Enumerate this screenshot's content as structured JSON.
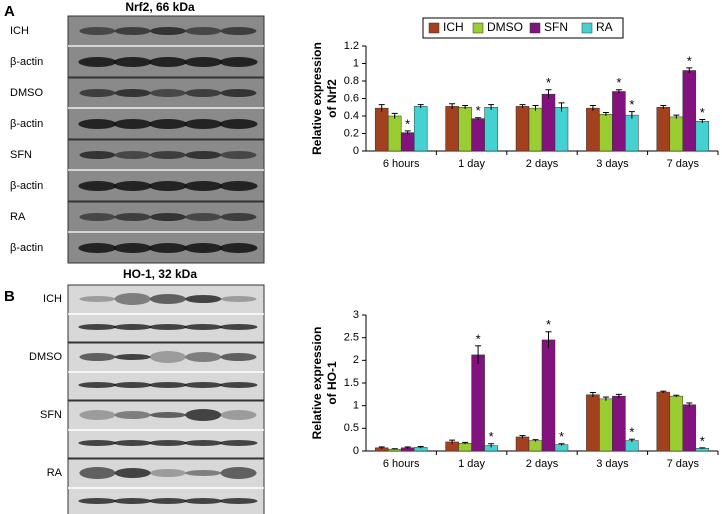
{
  "panels": [
    {
      "letter": "A",
      "title": "Nrf2, 66 kDa",
      "groups": [
        {
          "label": "ICH",
          "control": "β-actin"
        },
        {
          "label": "DMSO",
          "control": "β-actin"
        },
        {
          "label": "SFN",
          "control": "β-actin"
        },
        {
          "label": "RA",
          "control": "β-actin"
        }
      ]
    },
    {
      "letter": "B",
      "title": "HO-1, 32 kDa",
      "groups": [
        {
          "label": "ICH"
        },
        {
          "label": "DMSO"
        },
        {
          "label": "SFN"
        },
        {
          "label": "RA"
        }
      ]
    }
  ],
  "chart_data": [
    {
      "type": "bar",
      "ylabel": [
        "Relative expression",
        "of Nrf2"
      ],
      "categories": [
        "6 hours",
        "1 day",
        "2 days",
        "3 days",
        "7 days"
      ],
      "series": [
        {
          "name": "ICH",
          "color": "#a3401e",
          "values": [
            0.49,
            0.51,
            0.51,
            0.49,
            0.5
          ],
          "errors": [
            0.04,
            0.03,
            0.02,
            0.03,
            0.02
          ]
        },
        {
          "name": "DMSO",
          "color": "#9acd32",
          "values": [
            0.4,
            0.5,
            0.49,
            0.42,
            0.39
          ],
          "errors": [
            0.03,
            0.02,
            0.03,
            0.02,
            0.02
          ]
        },
        {
          "name": "SFN",
          "color": "#82127e",
          "values": [
            0.21,
            0.37,
            0.65,
            0.68,
            0.92
          ],
          "errors": [
            0.02,
            0.01,
            0.05,
            0.02,
            0.03
          ]
        },
        {
          "name": "RA",
          "color": "#44d1d1",
          "values": [
            0.51,
            0.5,
            0.5,
            0.41,
            0.34
          ],
          "errors": [
            0.02,
            0.03,
            0.05,
            0.04,
            0.02
          ]
        }
      ],
      "annotations": [
        {
          "text": "*",
          "category": "6 hours",
          "series": "SFN"
        },
        {
          "text": "*",
          "category": "1 day",
          "series": "SFN"
        },
        {
          "text": "*",
          "category": "2 days",
          "series": "SFN"
        },
        {
          "text": "*",
          "category": "3 days",
          "series": "SFN"
        },
        {
          "text": "*",
          "category": "3 days",
          "series": "RA"
        },
        {
          "text": "*",
          "category": "7 days",
          "series": "SFN"
        },
        {
          "text": "*",
          "category": "7 days",
          "series": "RA"
        }
      ],
      "ylim": [
        0,
        1.2
      ],
      "yticks": [
        0,
        0.2,
        0.4,
        0.6,
        0.8,
        1,
        1.2
      ],
      "legend": "top"
    },
    {
      "type": "bar",
      "ylabel": [
        "Relative expression",
        "of HO-1"
      ],
      "categories": [
        "6 hours",
        "1 day",
        "2 days",
        "3 days",
        "7 days"
      ],
      "series": [
        {
          "name": "ICH",
          "color": "#a3401e",
          "values": [
            0.07,
            0.2,
            0.31,
            1.24,
            1.3
          ],
          "errors": [
            0.02,
            0.04,
            0.03,
            0.05,
            0.02
          ]
        },
        {
          "name": "DMSO",
          "color": "#9acd32",
          "values": [
            0.04,
            0.17,
            0.23,
            1.15,
            1.21
          ],
          "errors": [
            0.01,
            0.02,
            0.02,
            0.04,
            0.02
          ]
        },
        {
          "name": "SFN",
          "color": "#82127e",
          "values": [
            0.07,
            2.12,
            2.45,
            1.21,
            1.02
          ],
          "errors": [
            0.02,
            0.2,
            0.18,
            0.04,
            0.04
          ]
        },
        {
          "name": "RA",
          "color": "#44d1d1",
          "values": [
            0.08,
            0.12,
            0.14,
            0.23,
            0.06
          ],
          "errors": [
            0.02,
            0.04,
            0.02,
            0.03,
            0.01
          ]
        }
      ],
      "annotations": [
        {
          "text": "*",
          "category": "1 day",
          "series": "SFN"
        },
        {
          "text": "*",
          "category": "1 day",
          "series": "RA"
        },
        {
          "text": "*",
          "category": "2 days",
          "series": "SFN"
        },
        {
          "text": "*",
          "category": "2 days",
          "series": "RA"
        },
        {
          "text": "*",
          "category": "3 days",
          "series": "RA"
        },
        {
          "text": "*",
          "category": "7 days",
          "series": "RA"
        }
      ],
      "ylim": [
        0,
        3
      ],
      "yticks": [
        0,
        0.5,
        1,
        1.5,
        2,
        2.5,
        3
      ]
    }
  ]
}
